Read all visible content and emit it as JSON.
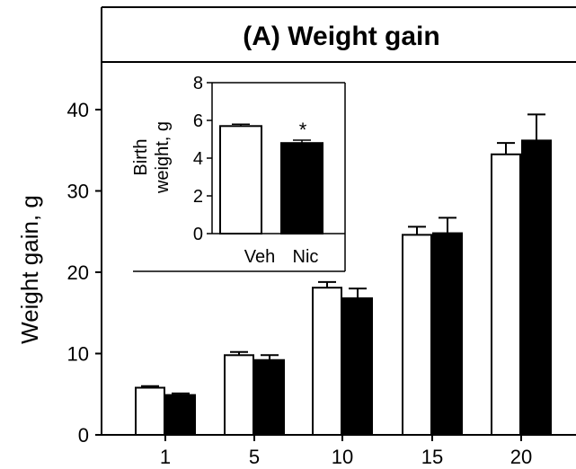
{
  "colors": {
    "vehicle_bar": "#ffffff",
    "nicotine_bar": "#000000",
    "outline": "#000000"
  },
  "chart_data": [
    {
      "type": "bar",
      "title": "(A) Weight gain",
      "xlabel": "",
      "ylabel": "Weight gain, g",
      "categories": [
        "1",
        "5",
        "10",
        "15",
        "20"
      ],
      "ylim": [
        0,
        45
      ],
      "yticks": [
        "0",
        "10",
        "20",
        "30",
        "40"
      ],
      "grid": false,
      "series": [
        {
          "fill": "white",
          "values": [
            5.8,
            9.8,
            18.1,
            24.6,
            34.5
          ],
          "errors": [
            0.2,
            0.4,
            0.7,
            1.0,
            1.4
          ]
        },
        {
          "fill": "black",
          "values": [
            4.9,
            9.2,
            16.8,
            24.8,
            36.2
          ],
          "errors": [
            0.2,
            0.6,
            1.2,
            1.9,
            3.2
          ]
        }
      ]
    },
    {
      "type": "bar",
      "title": "",
      "xlabel": "",
      "ylabel_lines": [
        "Birth",
        "weight, g"
      ],
      "categories": [
        "Veh",
        "Nic"
      ],
      "ylim": [
        0,
        8
      ],
      "yticks": [
        "0",
        "2",
        "4",
        "6",
        "8"
      ],
      "values": [
        5.7,
        4.8
      ],
      "errors": [
        0.1,
        0.15
      ],
      "annotation": "*"
    }
  ]
}
